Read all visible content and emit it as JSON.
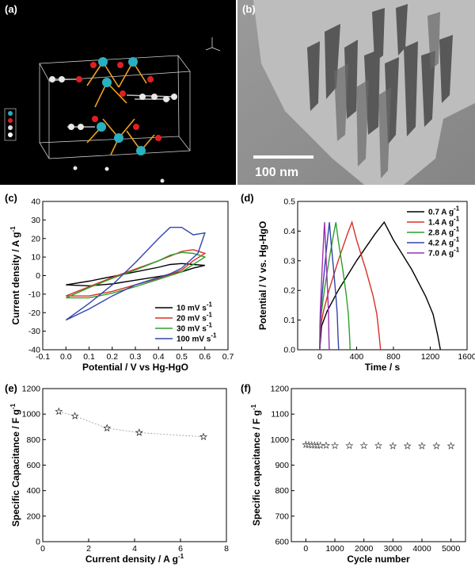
{
  "panels": {
    "a": {
      "label": "(a)"
    },
    "b": {
      "label": "(b)",
      "scale_bar": "100 nm"
    }
  },
  "chart_data": [
    {
      "id": "c",
      "panel_label": "(c)",
      "type": "line",
      "xlabel": "Potential / V vs Hg-HgO",
      "ylabel": "Current density / A g",
      "ylabel_sup": "-1",
      "xlim": [
        -0.1,
        0.7
      ],
      "ylim": [
        -40,
        40
      ],
      "xticks": [
        -0.1,
        0.0,
        0.1,
        0.2,
        0.3,
        0.4,
        0.5,
        0.6,
        0.7
      ],
      "xtick_labels": [
        "-0.1",
        "0.0",
        "0.1",
        "0.2",
        "0.3",
        "0.4",
        "0.5",
        "0.6",
        "0.7"
      ],
      "yticks": [
        -40,
        -30,
        -20,
        -10,
        0,
        10,
        20,
        30,
        40
      ],
      "ytick_labels": [
        "-40",
        "-30",
        "-20",
        "-10",
        "0",
        "10",
        "20",
        "30",
        "40"
      ],
      "legend": "bottom-right",
      "series": [
        {
          "name": "10 mV s",
          "sup": "-1",
          "color": "#000000",
          "x": [
            0.0,
            0.1,
            0.2,
            0.3,
            0.4,
            0.45,
            0.5,
            0.55,
            0.6,
            0.55,
            0.5,
            0.45,
            0.4,
            0.3,
            0.2,
            0.1,
            0.0
          ],
          "y": [
            -5,
            -3,
            -0.5,
            2,
            4.5,
            6,
            6.5,
            6,
            5.5,
            4,
            2,
            0.5,
            -0.5,
            -2.5,
            -4.5,
            -5.5,
            -5
          ]
        },
        {
          "name": "20 mV s",
          "sup": "-1",
          "color": "#d93025",
          "x": [
            0.0,
            0.1,
            0.2,
            0.3,
            0.4,
            0.45,
            0.5,
            0.55,
            0.6,
            0.55,
            0.5,
            0.45,
            0.4,
            0.3,
            0.2,
            0.1,
            0.0
          ],
          "y": [
            -11,
            -6,
            -1,
            3.5,
            8,
            10.5,
            13,
            14,
            12,
            8,
            3,
            0.5,
            -1.5,
            -5,
            -8.5,
            -11,
            -11
          ]
        },
        {
          "name": "30 mV s",
          "sup": "-1",
          "color": "#2ca02c",
          "x": [
            0.0,
            0.1,
            0.2,
            0.3,
            0.4,
            0.45,
            0.5,
            0.55,
            0.6,
            0.55,
            0.5,
            0.45,
            0.4,
            0.3,
            0.2,
            0.1,
            0.0
          ],
          "y": [
            -12,
            -6.5,
            -1.5,
            3,
            8,
            11,
            12.5,
            12,
            10,
            6,
            2,
            0,
            -2,
            -6,
            -9.5,
            -12,
            -12
          ]
        },
        {
          "name": "100 mV s",
          "sup": "-1",
          "color": "#3344aa",
          "x": [
            0.0,
            0.1,
            0.2,
            0.3,
            0.4,
            0.45,
            0.5,
            0.55,
            0.6,
            0.57,
            0.5,
            0.45,
            0.4,
            0.3,
            0.2,
            0.1,
            0.0
          ],
          "y": [
            -24,
            -15,
            -5,
            7,
            20,
            26,
            26,
            22,
            23,
            12,
            4,
            1,
            -1,
            -5,
            -11,
            -18,
            -24
          ]
        }
      ]
    },
    {
      "id": "d",
      "panel_label": "(d)",
      "type": "line",
      "xlabel": "Time / s",
      "ylabel": "Potential / V vs. Hg-HgO",
      "xlim": [
        -240,
        1600
      ],
      "ylim": [
        0.0,
        0.5
      ],
      "xticks": [
        0,
        400,
        800,
        1200,
        1600
      ],
      "xtick_labels": [
        "0",
        "400",
        "800",
        "1200",
        "1600"
      ],
      "yticks": [
        0.0,
        0.1,
        0.2,
        0.3,
        0.4,
        0.5
      ],
      "ytick_labels": [
        "0.0",
        "0.1",
        "0.2",
        "0.3",
        "0.4",
        "0.5"
      ],
      "legend": "top-right",
      "series": [
        {
          "name": "0.7 A g",
          "sup": "-1",
          "color": "#000000",
          "x": [
            0,
            20,
            80,
            200,
            400,
            600,
            700,
            800,
            1000,
            1150,
            1230,
            1280,
            1310
          ],
          "y": [
            0.0,
            0.08,
            0.13,
            0.2,
            0.3,
            0.39,
            0.43,
            0.37,
            0.27,
            0.18,
            0.12,
            0.05,
            0.0
          ]
        },
        {
          "name": "1.4 A g",
          "sup": "-1",
          "color": "#d93025",
          "x": [
            0,
            10,
            40,
            100,
            200,
            300,
            350,
            400,
            500,
            580,
            620,
            645,
            660
          ],
          "y": [
            0.0,
            0.08,
            0.13,
            0.2,
            0.3,
            0.39,
            0.43,
            0.37,
            0.27,
            0.18,
            0.12,
            0.05,
            0.0
          ]
        },
        {
          "name": "2.8 A g",
          "sup": "-1",
          "color": "#2ca02c",
          "x": [
            0,
            5,
            20,
            50,
            100,
            150,
            175,
            200,
            250,
            290,
            310,
            323,
            330
          ],
          "y": [
            0.0,
            0.08,
            0.13,
            0.2,
            0.3,
            0.39,
            0.43,
            0.37,
            0.27,
            0.18,
            0.12,
            0.05,
            0.0
          ]
        },
        {
          "name": "4.2 A g",
          "sup": "-1",
          "color": "#3344aa",
          "x": [
            0,
            3,
            12,
            30,
            60,
            90,
            105,
            120,
            150,
            175,
            190,
            198,
            205
          ],
          "y": [
            0.0,
            0.08,
            0.13,
            0.2,
            0.3,
            0.39,
            0.43,
            0.37,
            0.27,
            0.18,
            0.12,
            0.05,
            0.0
          ]
        },
        {
          "name": "7.0 A g",
          "sup": "-1",
          "color": "#9b30b0",
          "x": [
            0,
            2,
            6,
            15,
            30,
            45,
            52,
            60,
            75,
            88,
            95,
            99,
            103
          ],
          "y": [
            0.0,
            0.08,
            0.13,
            0.2,
            0.3,
            0.39,
            0.43,
            0.37,
            0.27,
            0.18,
            0.12,
            0.05,
            0.0
          ]
        }
      ]
    },
    {
      "id": "e",
      "panel_label": "(e)",
      "type": "line",
      "marker": "star",
      "xlabel": "Current density / A g",
      "xlabel_sup": "-1",
      "ylabel": "Specific Capacitance / F g",
      "ylabel_sup": "-1",
      "xlim": [
        0,
        8
      ],
      "ylim": [
        0,
        1200
      ],
      "xticks": [
        0,
        2,
        4,
        6,
        8
      ],
      "xtick_labels": [
        "0",
        "2",
        "4",
        "6",
        "8"
      ],
      "yticks": [
        0,
        200,
        400,
        600,
        800,
        1000,
        1200
      ],
      "ytick_labels": [
        "0",
        "200",
        "400",
        "600",
        "800",
        "1000",
        "1200"
      ],
      "series": [
        {
          "color": "#999999",
          "x": [
            0.7,
            1.4,
            2.8,
            4.2,
            7.0
          ],
          "y": [
            1020,
            985,
            890,
            855,
            822
          ]
        }
      ]
    },
    {
      "id": "f",
      "panel_label": "(f)",
      "type": "scatter",
      "marker": "star",
      "xlabel": "Cycle number",
      "ylabel": "Specific capacitance / F g",
      "ylabel_sup": "-1",
      "xlim": [
        -500,
        5500
      ],
      "ylim": [
        600,
        1200
      ],
      "xticks": [
        0,
        1000,
        2000,
        3000,
        4000,
        5000
      ],
      "xtick_labels": [
        "0",
        "1000",
        "2000",
        "3000",
        "4000",
        "5000"
      ],
      "yticks": [
        600,
        700,
        800,
        900,
        1000,
        1100,
        1200
      ],
      "ytick_labels": [
        "600",
        "700",
        "800",
        "900",
        "1000",
        "1100",
        "1200"
      ],
      "series": [
        {
          "color": "#555555",
          "x": [
            0,
            100,
            200,
            300,
            400,
            500,
            700,
            1000,
            1500,
            2000,
            2500,
            3000,
            3500,
            4000,
            4500,
            5000
          ],
          "y": [
            980,
            979,
            978,
            978,
            977,
            977,
            977,
            976,
            976,
            976,
            976,
            975,
            975,
            975,
            975,
            975
          ]
        }
      ]
    }
  ]
}
